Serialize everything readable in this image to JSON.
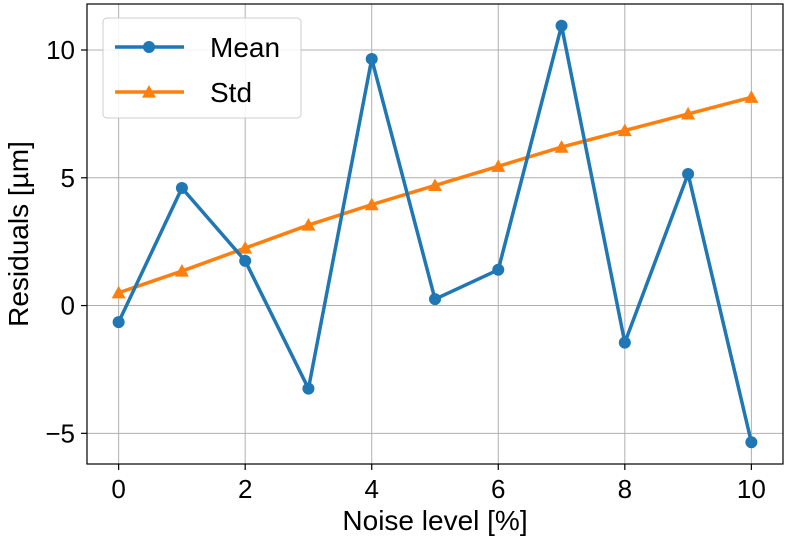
{
  "chart_data": {
    "type": "line",
    "xlabel": "Noise level [%]",
    "ylabel": "Residuals [µm]",
    "x": [
      0,
      1,
      2,
      3,
      4,
      5,
      6,
      7,
      8,
      9,
      10
    ],
    "series": [
      {
        "name": "Mean",
        "marker": "circle",
        "color": "#1f77b4",
        "values": [
          -0.65,
          4.6,
          1.75,
          -3.25,
          9.65,
          0.25,
          1.4,
          10.95,
          -1.45,
          5.15,
          -5.35
        ]
      },
      {
        "name": "Std",
        "marker": "triangle",
        "color": "#ff7f0e",
        "values": [
          0.5,
          1.35,
          2.25,
          3.15,
          3.95,
          4.7,
          5.45,
          6.2,
          6.85,
          7.5,
          8.15
        ]
      }
    ],
    "xlim": [
      -0.5,
      10.5
    ],
    "ylim": [
      -6.2,
      11.8
    ],
    "xticks": [
      0,
      2,
      4,
      6,
      8,
      10
    ],
    "yticks": [
      -5,
      0,
      5,
      10
    ],
    "ytick_labels": [
      "−5",
      "0",
      "5",
      "10"
    ],
    "grid": true,
    "legend_position": "top-left"
  }
}
